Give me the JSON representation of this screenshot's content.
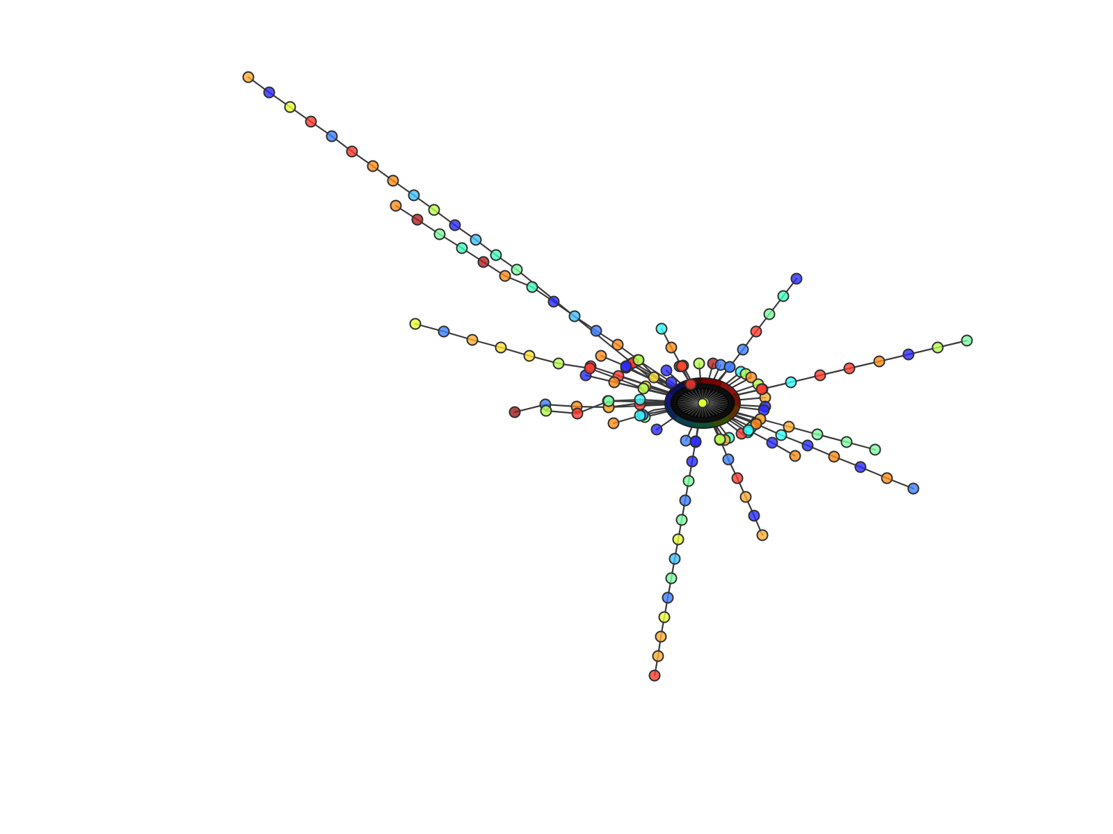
{
  "diagram": {
    "type": "network-graph",
    "description_visible_text": "",
    "palette": [
      "#ff7f0e",
      "#ffa500",
      "#ffd92f",
      "#ffff33",
      "#bfff40",
      "#7fff7f",
      "#40ffbf",
      "#33ffff",
      "#40bfff",
      "#3d7fff",
      "#2f2fff",
      "#1a1aff",
      "#ff3333",
      "#ff5a1a",
      "#b22222",
      "#8b0000"
    ]
  }
}
